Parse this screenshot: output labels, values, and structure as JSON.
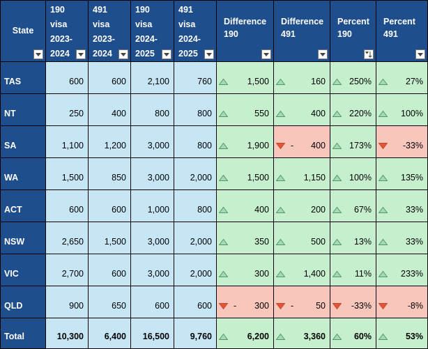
{
  "headers": [
    {
      "label": "State",
      "sort": false
    },
    {
      "label": "190\nvisa\n2023-\n2024",
      "sort": false
    },
    {
      "label": "491\nvisa\n2023-\n2024",
      "sort": false
    },
    {
      "label": "190\nvisa\n2024-\n2025",
      "sort": false
    },
    {
      "label": "491\nvisa\n2024-\n2025",
      "sort": false
    },
    {
      "label": "Difference\n190",
      "sort": false
    },
    {
      "label": "Difference\n491",
      "sort": false
    },
    {
      "label": "Percent\n190",
      "sort": true
    },
    {
      "label": "Percent\n491",
      "sort": false
    }
  ],
  "colors": {
    "header": "#1f4e8c",
    "numeric": "#c6e6f5",
    "up": "#c6efce",
    "down": "#f8c6bb",
    "arrow_up": "#5fa87a",
    "arrow_down": "#e2553a"
  },
  "icons": {
    "filter": "filter-dropdown-icon",
    "sort": "sort-descending-icon",
    "up": "triangle-up-icon",
    "down": "triangle-down-icon"
  },
  "rows": [
    {
      "state": "TAS",
      "v190_2324": "600",
      "v491_2324": "600",
      "v190_2425": "2,100",
      "v491_2425": "760",
      "diff190": {
        "dir": "up",
        "text": "1,500"
      },
      "diff491": {
        "dir": "up",
        "text": "160"
      },
      "pct190": {
        "dir": "up",
        "text": "250%"
      },
      "pct491": {
        "dir": "up",
        "text": "27%"
      }
    },
    {
      "state": "NT",
      "v190_2324": "250",
      "v491_2324": "400",
      "v190_2425": "800",
      "v491_2425": "800",
      "diff190": {
        "dir": "up",
        "text": "550"
      },
      "diff491": {
        "dir": "up",
        "text": "400"
      },
      "pct190": {
        "dir": "up",
        "text": "220%"
      },
      "pct491": {
        "dir": "up",
        "text": "100%"
      }
    },
    {
      "state": "SA",
      "v190_2324": "1,100",
      "v491_2324": "1,200",
      "v190_2425": "3,000",
      "v491_2425": "800",
      "diff190": {
        "dir": "up",
        "text": "1,900"
      },
      "diff491": {
        "dir": "down",
        "text": "400",
        "dash": "-"
      },
      "pct190": {
        "dir": "up",
        "text": "173%"
      },
      "pct491": {
        "dir": "down",
        "text": "-33%"
      }
    },
    {
      "state": "WA",
      "v190_2324": "1,500",
      "v491_2324": "850",
      "v190_2425": "3,000",
      "v491_2425": "2,000",
      "diff190": {
        "dir": "up",
        "text": "1,500"
      },
      "diff491": {
        "dir": "up",
        "text": "1,150"
      },
      "pct190": {
        "dir": "up",
        "text": "100%"
      },
      "pct491": {
        "dir": "up",
        "text": "135%"
      }
    },
    {
      "state": "ACT",
      "v190_2324": "600",
      "v491_2324": "600",
      "v190_2425": "1,000",
      "v491_2425": "800",
      "diff190": {
        "dir": "up",
        "text": "400"
      },
      "diff491": {
        "dir": "up",
        "text": "200"
      },
      "pct190": {
        "dir": "up",
        "text": "67%"
      },
      "pct491": {
        "dir": "up",
        "text": "33%"
      }
    },
    {
      "state": "NSW",
      "v190_2324": "2,650",
      "v491_2324": "1,500",
      "v190_2425": "3,000",
      "v491_2425": "2,000",
      "diff190": {
        "dir": "up",
        "text": "350"
      },
      "diff491": {
        "dir": "up",
        "text": "500"
      },
      "pct190": {
        "dir": "up",
        "text": "13%"
      },
      "pct491": {
        "dir": "up",
        "text": "33%"
      }
    },
    {
      "state": "VIC",
      "v190_2324": "2,700",
      "v491_2324": "600",
      "v190_2425": "3,000",
      "v491_2425": "2,000",
      "diff190": {
        "dir": "up",
        "text": "300"
      },
      "diff491": {
        "dir": "up",
        "text": "1,400"
      },
      "pct190": {
        "dir": "up",
        "text": "11%"
      },
      "pct491": {
        "dir": "up",
        "text": "233%"
      }
    },
    {
      "state": "QLD",
      "v190_2324": "900",
      "v491_2324": "650",
      "v190_2425": "600",
      "v491_2425": "600",
      "diff190": {
        "dir": "down",
        "text": "300",
        "dash": "-"
      },
      "diff491": {
        "dir": "down",
        "text": "50",
        "dash": "-"
      },
      "pct190": {
        "dir": "down",
        "text": "-33%"
      },
      "pct491": {
        "dir": "down",
        "text": "-8%"
      }
    }
  ],
  "total": {
    "state": "Total",
    "v190_2324": "10,300",
    "v491_2324": "6,400",
    "v190_2425": "16,500",
    "v491_2425": "9,760",
    "diff190": {
      "dir": "up",
      "text": "6,200"
    },
    "diff491": {
      "dir": "up",
      "text": "3,360"
    },
    "pct190": {
      "dir": "up",
      "text": "60%"
    },
    "pct491": {
      "dir": "up",
      "text": "53%"
    }
  }
}
